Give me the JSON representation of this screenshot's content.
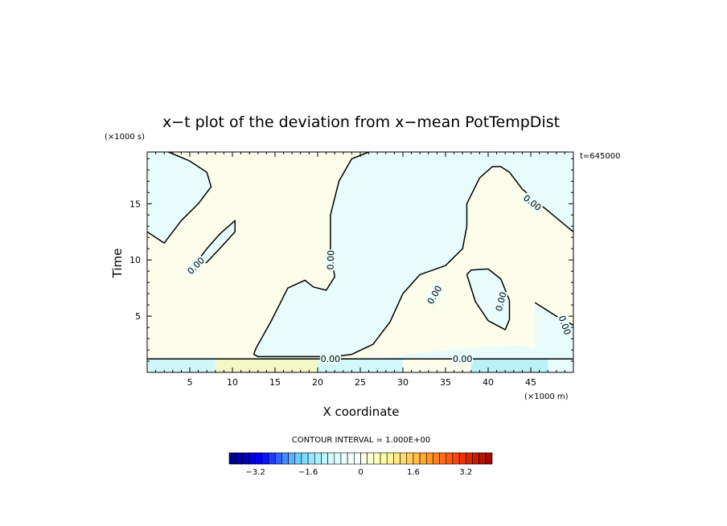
{
  "chart_data": {
    "type": "heatmap",
    "title": "x−t plot of the deviation from x−mean PotTempDist",
    "xlabel": "X coordinate",
    "ylabel": "Time",
    "x_unit": "(×1000 m)",
    "y_unit": "(×1000 s)",
    "time_note": "t=645000",
    "xlim": [
      0,
      50
    ],
    "ylim": [
      0,
      19.6
    ],
    "x_ticks": [
      5,
      10,
      15,
      20,
      25,
      30,
      35,
      40,
      45
    ],
    "x_tick_labels": [
      "5",
      "10",
      "15",
      "20",
      "25",
      "30",
      "35",
      "40",
      "45"
    ],
    "y_ticks": [
      5,
      10,
      15
    ],
    "y_tick_labels": [
      "5",
      "10",
      "15"
    ],
    "contour_interval_text": "CONTOUR INTERVAL = 1.000E+00",
    "contour_label": "0.00",
    "colors": {
      "negative_fill": "#e8fcfc",
      "positive_fill": "#fdfdec",
      "strong_negative_fill": "#a4ecf4",
      "strong_positive_fill": "#faf3a0",
      "contour_line": "#000000"
    },
    "colorbar": {
      "min": -4.0,
      "max": 4.0,
      "step": 0.2,
      "tick_values": [
        -3.2,
        -1.6,
        0,
        1.6,
        3.2
      ],
      "tick_labels": [
        "−3.2",
        "−1.6",
        "0",
        "1.6",
        "3.2"
      ],
      "colors": [
        "#00008c",
        "#0000a5",
        "#0000be",
        "#0000d7",
        "#0000f0",
        "#0a14ff",
        "#1e3cff",
        "#3264ff",
        "#468cff",
        "#5ab4ff",
        "#6ecdff",
        "#82dcff",
        "#96e6ff",
        "#aaf0ff",
        "#bef5ff",
        "#d2faff",
        "#e1fcff",
        "#ebfdfd",
        "#f2fefe",
        "#f9ffff",
        "#ffffe6",
        "#ffffd2",
        "#ffffbe",
        "#fffaaa",
        "#fff596",
        "#ffeb82",
        "#ffdc6e",
        "#ffcd5a",
        "#ffbe46",
        "#ffaa32",
        "#ff9628",
        "#ff8220",
        "#ff6e18",
        "#ff5a10",
        "#ff4608",
        "#f03200",
        "#dc2800",
        "#c81e00",
        "#b41400",
        "#a00a00"
      ]
    },
    "zero_contours": [
      {
        "label": "0.00",
        "points": [
          [
            2.5,
            19.6
          ],
          [
            5,
            18.8
          ],
          [
            7,
            17.8
          ],
          [
            7.5,
            16.5
          ],
          [
            6,
            15
          ],
          [
            4,
            13.5
          ],
          [
            2,
            11.5
          ],
          [
            0,
            12.5
          ]
        ]
      },
      {
        "label": "0.00",
        "points": [
          [
            5.5,
            9.5
          ],
          [
            7,
            11
          ],
          [
            8.5,
            12.3
          ],
          [
            10.3,
            13.5
          ],
          [
            10.3,
            12.5
          ],
          [
            8.5,
            11
          ],
          [
            7,
            9.8
          ],
          [
            5.5,
            9.5
          ]
        ]
      },
      {
        "label": "0.00",
        "points": [
          [
            26,
            19.6
          ],
          [
            24,
            19
          ],
          [
            22.5,
            17
          ],
          [
            21.5,
            14
          ],
          [
            21.5,
            11
          ],
          [
            22,
            8.5
          ],
          [
            21,
            7.3
          ],
          [
            19.5,
            7.6
          ],
          [
            18.5,
            8.2
          ],
          [
            16.5,
            7.5
          ],
          [
            14.5,
            4.5
          ],
          [
            12.8,
            2.2
          ],
          [
            12.5,
            1.6
          ],
          [
            13,
            1.4
          ],
          [
            22,
            1.4
          ],
          [
            24,
            1.6
          ],
          [
            26.5,
            2.5
          ],
          [
            28.5,
            4.5
          ],
          [
            30,
            7
          ],
          [
            32,
            8.7
          ],
          [
            35,
            9.5
          ],
          [
            37,
            11
          ],
          [
            37.5,
            13
          ],
          [
            37.5,
            15
          ],
          [
            39,
            17.3
          ],
          [
            40.5,
            18.3
          ],
          [
            41.5,
            18.3
          ],
          [
            42.5,
            17.8
          ],
          [
            44,
            16.3
          ],
          [
            46,
            15
          ],
          [
            50,
            12.5
          ]
        ]
      },
      {
        "label": "0.00",
        "points": [
          [
            37.5,
            8.7
          ],
          [
            38.5,
            6.3
          ],
          [
            40,
            4.6
          ],
          [
            42,
            3.8
          ],
          [
            42.5,
            4.7
          ],
          [
            42.5,
            6.4
          ],
          [
            41.5,
            8.3
          ],
          [
            40,
            9.2
          ],
          [
            38,
            9.1
          ],
          [
            37.5,
            8.7
          ]
        ]
      },
      {
        "label": "0.00",
        "points": [
          [
            45.5,
            6.2
          ],
          [
            48,
            5
          ],
          [
            50,
            4.2
          ]
        ]
      },
      {
        "label": "0.00",
        "points": [
          [
            0,
            1.2
          ],
          [
            50,
            1.2
          ]
        ]
      }
    ]
  }
}
